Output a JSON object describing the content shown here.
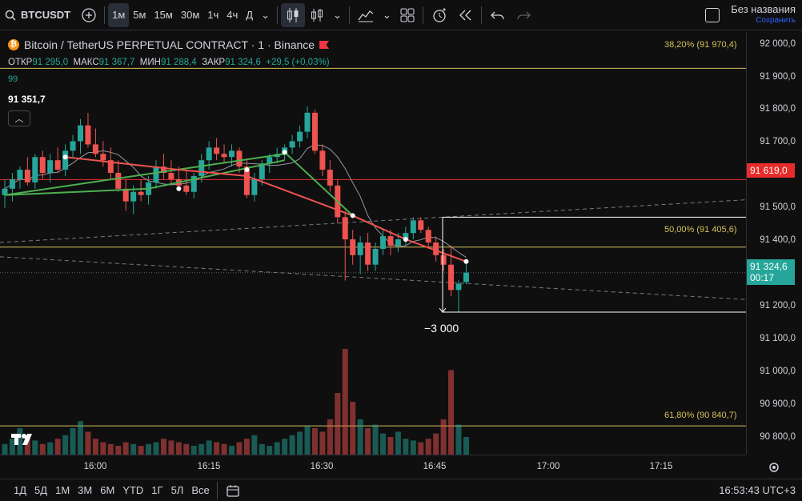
{
  "toolbar": {
    "symbol": "BTCUSDT",
    "intervals": [
      "1м",
      "5м",
      "15м",
      "30м",
      "1ч",
      "4ч",
      "Д"
    ],
    "active_interval": "1м",
    "layout_name": "Без названия",
    "layout_status": "Сохранить"
  },
  "legend": {
    "title": "Bitcoin / TetherUS PERPETUAL CONTRACT · 1 · Binance",
    "open_label": "ОТКР",
    "open": "91 295,0",
    "high_label": "МАКС",
    "high": "91 367,7",
    "low_label": "МИН",
    "low": "91 288,4",
    "close_label": "ЗАКР",
    "close": "91 324,6",
    "change": "+29,5 (+0,03%)",
    "indicator_value": "99",
    "crosshair_value": "91 351,7"
  },
  "fib": {
    "level_382": "38,20% (91 970,4)",
    "level_500": "50,00% (91 405,6)",
    "level_618": "61,80% (90 840,7)"
  },
  "measure_label": "−3 000",
  "price_axis": {
    "ticks": [
      "92 000,0",
      "91 900,0",
      "91 800,0",
      "91 700,0",
      "91 500,0",
      "91 400,0",
      "91 200,0",
      "91 100,0",
      "91 000,0",
      "90 900,0",
      "90 800,0"
    ],
    "alert_price": "91 619,0",
    "last_price": "91 324,6",
    "countdown": "00:17"
  },
  "time_axis": {
    "ticks": [
      "16:00",
      "16:15",
      "16:30",
      "16:45",
      "17:00",
      "17:15"
    ]
  },
  "bottom_bar": {
    "ranges": [
      "1Д",
      "5Д",
      "1М",
      "3М",
      "6М",
      "YTD",
      "1Г",
      "5Л",
      "Все"
    ],
    "clock": "16:53:43 UTC+3"
  },
  "colors": {
    "up": "#26a69a",
    "down": "#ef5350",
    "fib": "#d5c15a",
    "alert": "#e82b2b",
    "background": "#0f0f0f"
  },
  "chart_data": {
    "type": "candlestick",
    "symbol": "BTCUSDT",
    "interval": "1m",
    "y_range": [
      90750,
      92080
    ],
    "candles": [
      {
        "o": 91570,
        "h": 91620,
        "l": 91530,
        "c": 91590
      },
      {
        "o": 91590,
        "h": 91640,
        "l": 91550,
        "c": 91620
      },
      {
        "o": 91620,
        "h": 91660,
        "l": 91590,
        "c": 91650
      },
      {
        "o": 91650,
        "h": 91690,
        "l": 91600,
        "c": 91610
      },
      {
        "o": 91610,
        "h": 91700,
        "l": 91590,
        "c": 91690
      },
      {
        "o": 91690,
        "h": 91710,
        "l": 91620,
        "c": 91640
      },
      {
        "o": 91640,
        "h": 91700,
        "l": 91610,
        "c": 91680
      },
      {
        "o": 91680,
        "h": 91720,
        "l": 91640,
        "c": 91650
      },
      {
        "o": 91650,
        "h": 91730,
        "l": 91630,
        "c": 91710
      },
      {
        "o": 91710,
        "h": 91760,
        "l": 91690,
        "c": 91740
      },
      {
        "o": 91740,
        "h": 91810,
        "l": 91700,
        "c": 91790
      },
      {
        "o": 91790,
        "h": 91830,
        "l": 91720,
        "c": 91730
      },
      {
        "o": 91730,
        "h": 91780,
        "l": 91690,
        "c": 91700
      },
      {
        "o": 91700,
        "h": 91740,
        "l": 91660,
        "c": 91680
      },
      {
        "o": 91680,
        "h": 91720,
        "l": 91620,
        "c": 91640
      },
      {
        "o": 91640,
        "h": 91680,
        "l": 91580,
        "c": 91590
      },
      {
        "o": 91590,
        "h": 91620,
        "l": 91520,
        "c": 91550
      },
      {
        "o": 91550,
        "h": 91600,
        "l": 91510,
        "c": 91580
      },
      {
        "o": 91580,
        "h": 91620,
        "l": 91550,
        "c": 91570
      },
      {
        "o": 91570,
        "h": 91630,
        "l": 91540,
        "c": 91610
      },
      {
        "o": 91610,
        "h": 91680,
        "l": 91590,
        "c": 91660
      },
      {
        "o": 91660,
        "h": 91700,
        "l": 91620,
        "c": 91640
      },
      {
        "o": 91640,
        "h": 91680,
        "l": 91600,
        "c": 91620
      },
      {
        "o": 91620,
        "h": 91660,
        "l": 91590,
        "c": 91600
      },
      {
        "o": 91600,
        "h": 91650,
        "l": 91570,
        "c": 91580
      },
      {
        "o": 91580,
        "h": 91640,
        "l": 91560,
        "c": 91630
      },
      {
        "o": 91630,
        "h": 91700,
        "l": 91610,
        "c": 91680
      },
      {
        "o": 91680,
        "h": 91740,
        "l": 91650,
        "c": 91720
      },
      {
        "o": 91720,
        "h": 91750,
        "l": 91680,
        "c": 91700
      },
      {
        "o": 91700,
        "h": 91730,
        "l": 91670,
        "c": 91690
      },
      {
        "o": 91690,
        "h": 91730,
        "l": 91660,
        "c": 91710
      },
      {
        "o": 91710,
        "h": 91720,
        "l": 91640,
        "c": 91660
      },
      {
        "o": 91660,
        "h": 91680,
        "l": 91560,
        "c": 91570
      },
      {
        "o": 91570,
        "h": 91640,
        "l": 91550,
        "c": 91620
      },
      {
        "o": 91620,
        "h": 91680,
        "l": 91600,
        "c": 91670
      },
      {
        "o": 91670,
        "h": 91700,
        "l": 91640,
        "c": 91690
      },
      {
        "o": 91690,
        "h": 91720,
        "l": 91670,
        "c": 91700
      },
      {
        "o": 91700,
        "h": 91730,
        "l": 91680,
        "c": 91720
      },
      {
        "o": 91720,
        "h": 91760,
        "l": 91700,
        "c": 91740
      },
      {
        "o": 91740,
        "h": 91790,
        "l": 91720,
        "c": 91770
      },
      {
        "o": 91770,
        "h": 91850,
        "l": 91750,
        "c": 91830
      },
      {
        "o": 91830,
        "h": 91840,
        "l": 91700,
        "c": 91710
      },
      {
        "o": 91710,
        "h": 91730,
        "l": 91630,
        "c": 91650
      },
      {
        "o": 91650,
        "h": 91680,
        "l": 91580,
        "c": 91600
      },
      {
        "o": 91600,
        "h": 91620,
        "l": 91480,
        "c": 91500
      },
      {
        "o": 91500,
        "h": 91520,
        "l": 91300,
        "c": 91430
      },
      {
        "o": 91430,
        "h": 91460,
        "l": 91350,
        "c": 91380
      },
      {
        "o": 91380,
        "h": 91440,
        "l": 91320,
        "c": 91420
      },
      {
        "o": 91420,
        "h": 91450,
        "l": 91330,
        "c": 91350
      },
      {
        "o": 91350,
        "h": 91420,
        "l": 91330,
        "c": 91400
      },
      {
        "o": 91400,
        "h": 91460,
        "l": 91380,
        "c": 91440
      },
      {
        "o": 91440,
        "h": 91460,
        "l": 91380,
        "c": 91410
      },
      {
        "o": 91410,
        "h": 91450,
        "l": 91390,
        "c": 91430
      },
      {
        "o": 91430,
        "h": 91470,
        "l": 91410,
        "c": 91450
      },
      {
        "o": 91450,
        "h": 91500,
        "l": 91430,
        "c": 91490
      },
      {
        "o": 91490,
        "h": 91500,
        "l": 91450,
        "c": 91460
      },
      {
        "o": 91460,
        "h": 91470,
        "l": 91400,
        "c": 91420
      },
      {
        "o": 91420,
        "h": 91440,
        "l": 91360,
        "c": 91380
      },
      {
        "o": 91380,
        "h": 91400,
        "l": 91330,
        "c": 91350
      },
      {
        "o": 91350,
        "h": 91410,
        "l": 91250,
        "c": 91270
      },
      {
        "o": 91270,
        "h": 91300,
        "l": 91200,
        "c": 91290
      },
      {
        "o": 91295,
        "h": 91368,
        "l": 91288,
        "c": 91325
      }
    ],
    "volume": [
      12,
      18,
      30,
      22,
      16,
      12,
      14,
      18,
      22,
      30,
      38,
      26,
      18,
      14,
      12,
      10,
      14,
      12,
      10,
      12,
      14,
      18,
      16,
      14,
      12,
      10,
      12,
      16,
      14,
      12,
      10,
      14,
      18,
      22,
      12,
      10,
      14,
      18,
      22,
      26,
      32,
      30,
      26,
      40,
      70,
      120,
      60,
      40,
      30,
      34,
      24,
      20,
      26,
      18,
      16,
      14,
      18,
      24,
      40,
      96,
      34,
      20
    ],
    "vol_up": [
      true,
      true,
      true,
      false,
      true,
      false,
      true,
      false,
      true,
      true,
      true,
      false,
      false,
      false,
      false,
      false,
      false,
      true,
      false,
      true,
      true,
      false,
      false,
      false,
      false,
      true,
      true,
      true,
      false,
      false,
      true,
      false,
      false,
      true,
      true,
      true,
      true,
      true,
      true,
      true,
      true,
      false,
      false,
      false,
      false,
      false,
      false,
      true,
      false,
      true,
      true,
      false,
      true,
      true,
      true,
      false,
      false,
      false,
      false,
      false,
      true,
      true
    ]
  }
}
